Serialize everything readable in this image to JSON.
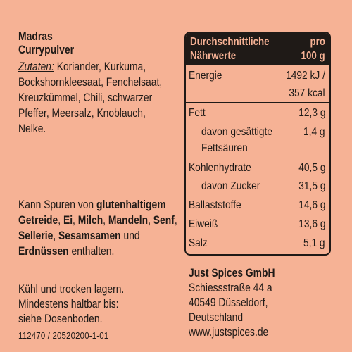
{
  "product": {
    "name": "Madras",
    "subtitle": "Currypulver"
  },
  "ingredients": {
    "label": "Zutaten:",
    "line1": "Koriander, Kurkuma,",
    "line2": "Bockshornkleesaat, Fenchelsaat,",
    "line3": "Kreuzkümmel, Chili, schwarzer",
    "line4": "Pfeffer, Meersalz, Knoblauch,",
    "line5": "Nelke."
  },
  "allergens": {
    "t1": "Kann Spuren von ",
    "b1": "glutenhaltigem Getreide",
    "t2": ", ",
    "b2": "Ei",
    "t3": ", ",
    "b3": "Milch",
    "t4": ", ",
    "b4": "Mandeln",
    "t5": ", ",
    "b5": "Senf",
    "t6": ", ",
    "b6": "Sellerie",
    "t7": ", ",
    "b7": "Sesamsamen",
    "t8": " und ",
    "b8": "Erdnüssen",
    "t9": " enthalten."
  },
  "storage": {
    "line1": "Kühl und trocken lagern.",
    "line2": "Mindestens haltbar bis:",
    "line3": "siehe Dosenboden."
  },
  "code": "112470 / 20520200-1-01",
  "nutrition": {
    "header_left_1": "Durchschnittliche",
    "header_left_2": "Nährwerte",
    "header_right_1": "pro",
    "header_right_2": "100 g",
    "energy_label": "Energie",
    "energy_kj": "1492 kJ /",
    "energy_kcal": "357 kcal",
    "fat_label": "Fett",
    "fat_value": "12,3 g",
    "sat_label_1": "davon gesättigte",
    "sat_label_2": "Fettsäuren",
    "sat_value": "1,4 g",
    "carb_label": "Kohlenhydrate",
    "carb_value": "40,5 g",
    "sugar_label": "davon Zucker",
    "sugar_value": "31,5 g",
    "fiber_label": "Ballaststoffe",
    "fiber_value": "14,6 g",
    "protein_label": "Eiweiß",
    "protein_value": "13,6 g",
    "salt_label": "Salz",
    "salt_value": "5,1 g"
  },
  "company": {
    "name": "Just Spices GmbH",
    "street": "Schiessstraße 44 a",
    "city": "40549 Düsseldorf, Deutschland",
    "web": "www.justspices.de"
  }
}
